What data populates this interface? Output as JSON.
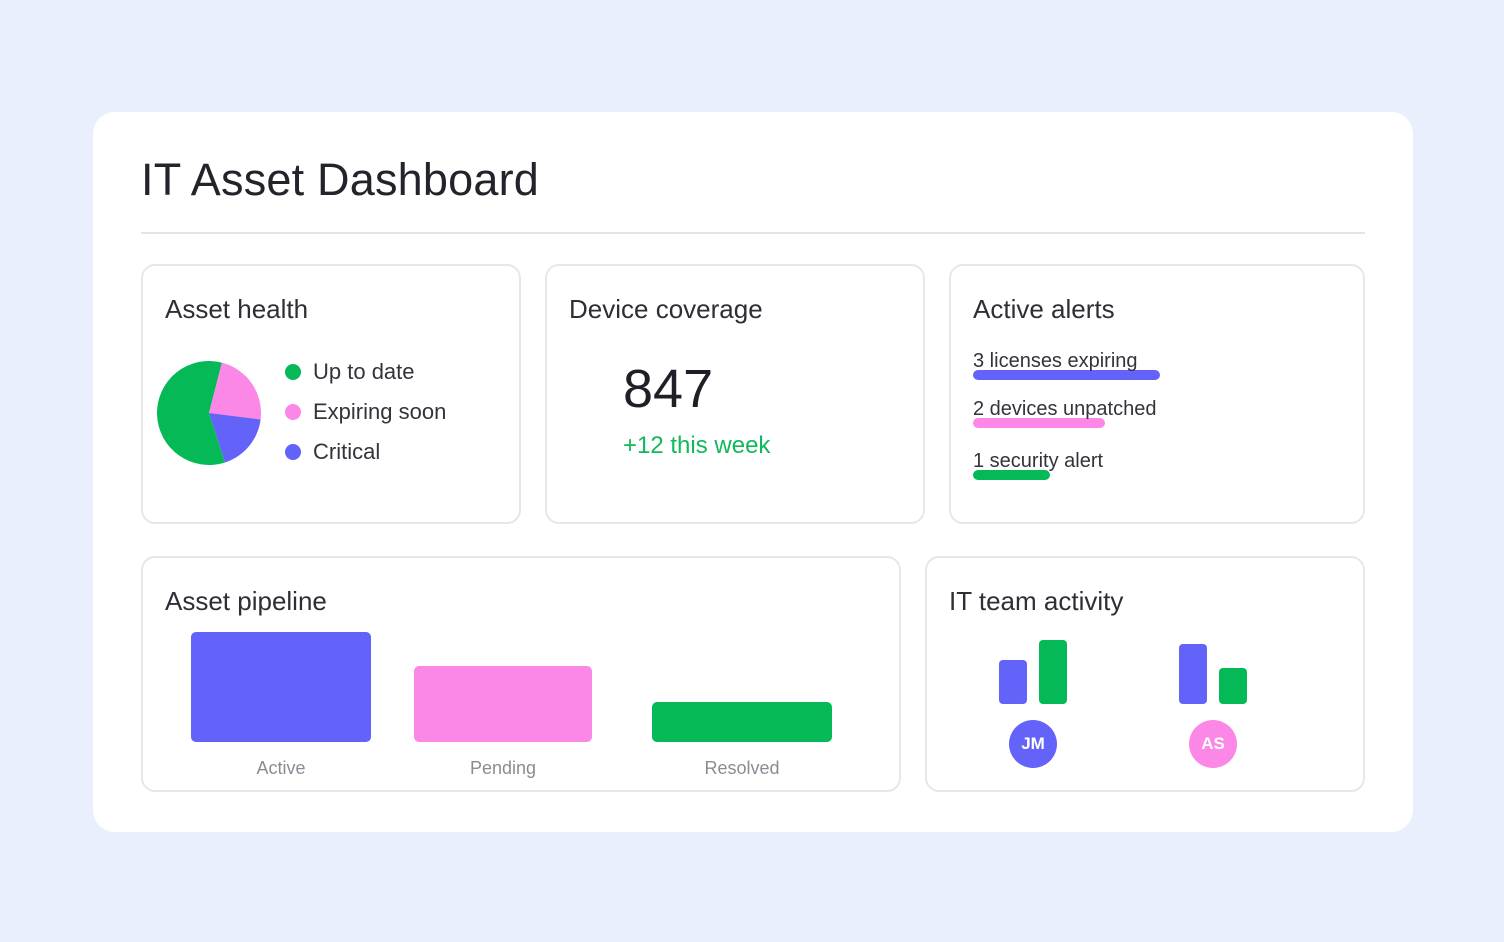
{
  "page": {
    "title": "IT Asset Dashboard"
  },
  "colors": {
    "green": "#06b957",
    "pink": "#fb87e6",
    "indigo": "#6362f9"
  },
  "asset_health": {
    "title": "Asset health",
    "legend": [
      {
        "label": "Up to date",
        "color": "#06b957"
      },
      {
        "label": "Expiring soon",
        "color": "#fb87e6"
      },
      {
        "label": "Critical",
        "color": "#6362f9"
      }
    ],
    "chart_data": {
      "type": "pie",
      "slices": [
        {
          "label": "Up to date",
          "value": 59,
          "color": "#06b957"
        },
        {
          "label": "Expiring soon",
          "value": 23,
          "color": "#fb87e6"
        },
        {
          "label": "Critical",
          "value": 18,
          "color": "#6362f9"
        }
      ]
    }
  },
  "device_coverage": {
    "title": "Device coverage",
    "value": "847",
    "delta": "+12 this week"
  },
  "active_alerts": {
    "title": "Active alerts",
    "items": [
      {
        "text": "3 licenses expiring",
        "color": "#6362f9"
      },
      {
        "text": "2 devices unpatched",
        "color": "#fb87e6"
      },
      {
        "text": "1 security alert",
        "color": "#06b957"
      }
    ]
  },
  "asset_pipeline": {
    "title": "Asset pipeline",
    "chart_data": {
      "type": "bar",
      "categories": [
        "Active",
        "Pending",
        "Resolved"
      ],
      "values": [
        110,
        76,
        40
      ],
      "colors": [
        "#6362f9",
        "#fb87e6",
        "#06b957"
      ]
    }
  },
  "team_activity": {
    "title": "IT team activity",
    "members": [
      {
        "initials": "JM",
        "avatar_color": "#6362f9",
        "bars": [
          44,
          64
        ]
      },
      {
        "initials": "AS",
        "avatar_color": "#fb87e6",
        "bars": [
          60,
          36
        ]
      }
    ],
    "bar_colors": [
      "#6362f9",
      "#06b957"
    ]
  }
}
